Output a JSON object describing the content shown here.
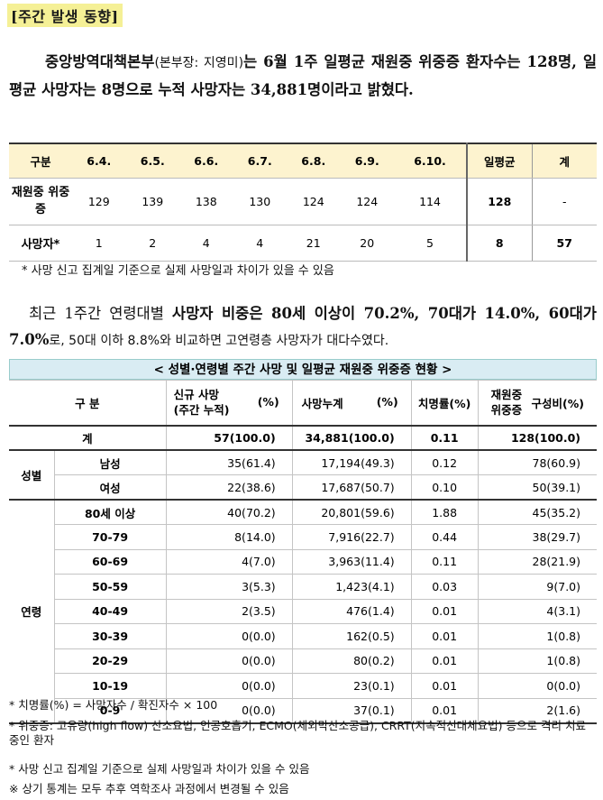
{
  "section_title": "[주간 발생 동향]",
  "para1": {
    "part1": "중앙방역대책본부",
    "part2": "(본부장: 지영미)",
    "part3": "는 6월 1주 일평균 재원중 위중증 환자수는 128명, 일평균 사망자는 8명으로 누적 사망자는 34,881명이라고 밝혔다."
  },
  "table1": {
    "header": [
      "구분",
      "6.4.",
      "6.5.",
      "6.6.",
      "6.7.",
      "6.8.",
      "6.9.",
      "6.10.",
      "일평균",
      "계"
    ],
    "row1_label": "재원중 위중증",
    "row1": [
      "129",
      "139",
      "138",
      "130",
      "124",
      "124",
      "114",
      "128",
      "-"
    ],
    "row2_label": "사망자*",
    "row2": [
      "1",
      "2",
      "4",
      "4",
      "21",
      "20",
      "5",
      "8",
      "57"
    ]
  },
  "note1": "* 사망 신고 집계일 기준으로 실제 사망일과 차이가 있을 수 있음",
  "para2": {
    "part1": "최근 1주간 연령대별 ",
    "part2": "사망자 비중은 80세 이상이 70.2%, 70대가 14.0%, 60대가 7.0%",
    "part3": "로, 50대 이하 8.8%와 비교하면 고연령층 사망자가 대다수였다."
  },
  "table2": {
    "title": "< 성별·연령별 주간 사망 및 일평균 재원중 위중증 현황 >",
    "headers": {
      "division": "구 분",
      "new_deaths_line1": "신규 사망",
      "new_deaths_line2": "(주간 누적)",
      "new_deaths_pct": "(%)",
      "cum_deaths": "사망누계",
      "cum_deaths_pct": "(%)",
      "fatality": "치명률(%)",
      "severe_line1": "재원중",
      "severe_line2": "위중증",
      "severe_ratio": "구성비(%)"
    },
    "total": {
      "label": "계",
      "new": "57(100.0)",
      "cum": "34,881(100.0)",
      "fat": "0.11",
      "sev": "128(100.0)"
    },
    "sex_group": "성별",
    "sex_rows": [
      {
        "label": "남성",
        "new": "35(61.4)",
        "cum": "17,194(49.3)",
        "fat": "0.12",
        "sev": "78(60.9)"
      },
      {
        "label": "여성",
        "new": "22(38.6)",
        "cum": "17,687(50.7)",
        "fat": "0.10",
        "sev": "50(39.1)"
      }
    ],
    "age_group": "연령",
    "age_rows": [
      {
        "label": "80세 이상",
        "new": "40(70.2)",
        "cum": "20,801(59.6)",
        "fat": "1.88",
        "sev": "45(35.2)"
      },
      {
        "label": "70-79",
        "new": "8(14.0)",
        "cum": "7,916(22.7)",
        "fat": "0.44",
        "sev": "38(29.7)"
      },
      {
        "label": "60-69",
        "new": "4(7.0)",
        "cum": "3,963(11.4)",
        "fat": "0.11",
        "sev": "28(21.9)"
      },
      {
        "label": "50-59",
        "new": "3(5.3)",
        "cum": "1,423(4.1)",
        "fat": "0.03",
        "sev": "9(7.0)"
      },
      {
        "label": "40-49",
        "new": "2(3.5)",
        "cum": "476(1.4)",
        "fat": "0.01",
        "sev": "4(3.1)"
      },
      {
        "label": "30-39",
        "new": "0(0.0)",
        "cum": "162(0.5)",
        "fat": "0.01",
        "sev": "1(0.8)"
      },
      {
        "label": "20-29",
        "new": "0(0.0)",
        "cum": "80(0.2)",
        "fat": "0.01",
        "sev": "1(0.8)"
      },
      {
        "label": "10-19",
        "new": "0(0.0)",
        "cum": "23(0.1)",
        "fat": "0.01",
        "sev": "0(0.0)"
      },
      {
        "label": "0-9",
        "new": "0(0.0)",
        "cum": "37(0.1)",
        "fat": "0.01",
        "sev": "2(1.6)"
      }
    ]
  },
  "footnotes": [
    "* 치명률(%) = 사망자수 / 확진자수 × 100",
    "* 위중증: 고유량(high flow) 산소요법, 인공호흡기, ECMO(체외막산소공급), CRRT(지속적신대체요법) 등으로 격리 치료 중인 환자",
    "* 사망 신고 집계일 기준으로 실제 사망일과 차이가 있을 수 있음",
    "※ 상기 통계는 모두 추후 역학조사 과정에서 변경될 수 있음"
  ],
  "colors": {
    "title_highlight": "#f5f096",
    "table1_header": "#fdf3cf",
    "table2_title": "#d9ecf3"
  }
}
